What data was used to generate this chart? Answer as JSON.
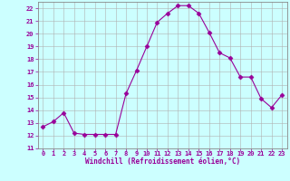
{
  "x": [
    0,
    1,
    2,
    3,
    4,
    5,
    6,
    7,
    8,
    9,
    10,
    11,
    12,
    13,
    14,
    15,
    16,
    17,
    18,
    19,
    20,
    21,
    22,
    23
  ],
  "y": [
    12.7,
    13.1,
    13.8,
    12.2,
    12.1,
    12.1,
    12.1,
    12.1,
    15.3,
    17.1,
    19.0,
    20.9,
    21.6,
    22.2,
    22.2,
    21.6,
    20.1,
    18.5,
    18.1,
    16.6,
    16.6,
    14.9,
    14.2,
    15.2
  ],
  "line_color": "#990099",
  "marker": "D",
  "marker_size": 2.5,
  "bg_color": "#ccffff",
  "grid_color": "#b0b0b0",
  "xlabel": "Windchill (Refroidissement éolien,°C)",
  "xlabel_color": "#990099",
  "tick_color": "#990099",
  "label_color": "#990099",
  "ylim": [
    11,
    22.5
  ],
  "xlim": [
    -0.5,
    23.5
  ],
  "yticks": [
    11,
    12,
    13,
    14,
    15,
    16,
    17,
    18,
    19,
    20,
    21,
    22
  ],
  "xticks": [
    0,
    1,
    2,
    3,
    4,
    5,
    6,
    7,
    8,
    9,
    10,
    11,
    12,
    13,
    14,
    15,
    16,
    17,
    18,
    19,
    20,
    21,
    22,
    23
  ],
  "tick_fontsize": 5.0,
  "xlabel_fontsize": 5.5
}
